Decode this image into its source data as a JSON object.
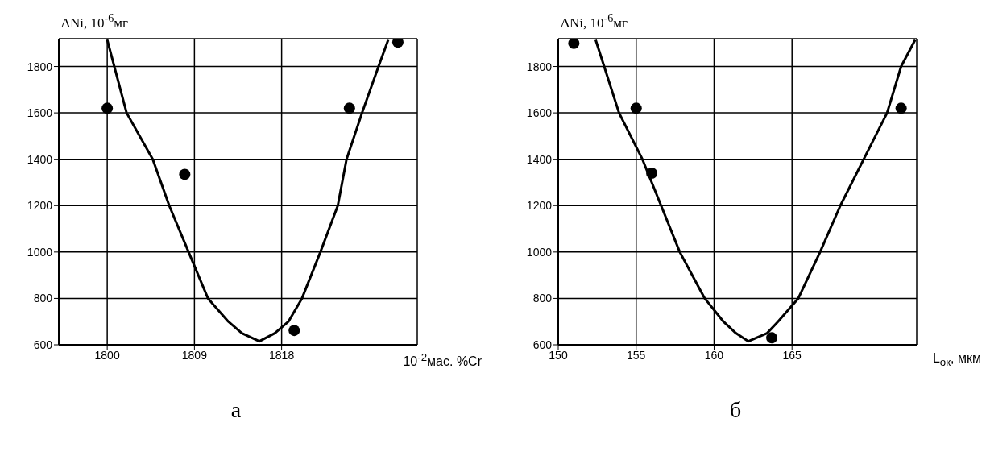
{
  "chart_data": [
    {
      "type": "scatter",
      "title": "а",
      "xlabel": "10$^{-2}$мас. %Cr",
      "ylabel": "ΔNi, 10$^{-6}$мг",
      "xlim": [
        1795,
        1832
      ],
      "xticks": [
        1800,
        1809,
        1818
      ],
      "ylim": [
        600,
        1920
      ],
      "yticks": [
        600,
        800,
        1000,
        1200,
        1400,
        1600,
        1800
      ],
      "grid": true,
      "legend": false,
      "series": [
        {
          "color": "#000000",
          "marker": "circle",
          "x": [
            1800,
            1808,
            1819.3,
            1825,
            1830
          ],
          "values": [
            1620,
            1335,
            662,
            1620,
            1905
          ]
        },
        {
          "type": "line",
          "color": "#000000",
          "marker": "none",
          "line_style": "solid",
          "x": [
            1800,
            1802,
            1804.7,
            1806.4,
            1808.4,
            1810.4,
            1812.5,
            1813.9,
            1815.7,
            1817.3,
            1818.7,
            1820.1,
            1822,
            1823.8,
            1824.7,
            1826.3,
            1828,
            1829
          ],
          "values": [
            1915,
            1600,
            1400,
            1200,
            1000,
            800,
            700,
            650,
            615,
            650,
            700,
            800,
            1000,
            1200,
            1400,
            1600,
            1800,
            1915
          ]
        }
      ]
    },
    {
      "type": "scatter",
      "title": "б",
      "xlabel": "L$_{ок}$, мкм",
      "ylabel": "ΔNi, 10$^{-6}$мг",
      "xlim": [
        150,
        173
      ],
      "xticks": [
        150,
        155,
        160,
        165
      ],
      "ylim": [
        600,
        1920
      ],
      "yticks": [
        600,
        800,
        1000,
        1200,
        1400,
        1600,
        1800
      ],
      "grid": true,
      "legend": false,
      "series": [
        {
          "color": "#000000",
          "marker": "circle",
          "x": [
            151,
            155,
            156,
            163.7,
            172
          ],
          "values": [
            1900,
            1620,
            1340,
            630,
            1620
          ]
        },
        {
          "type": "line",
          "color": "#000000",
          "marker": "none",
          "line_style": "solid",
          "x": [
            152.4,
            153.9,
            155.4,
            156.6,
            157.8,
            159.4,
            160.6,
            161.4,
            162.2,
            163.4,
            164.1,
            165.4,
            166.8,
            168.1,
            169.6,
            171.1,
            172,
            172.9
          ],
          "values": [
            1915,
            1600,
            1400,
            1200,
            1000,
            800,
            700,
            650,
            615,
            650,
            700,
            800,
            1000,
            1200,
            1400,
            1600,
            1800,
            1915
          ]
        }
      ]
    }
  ]
}
